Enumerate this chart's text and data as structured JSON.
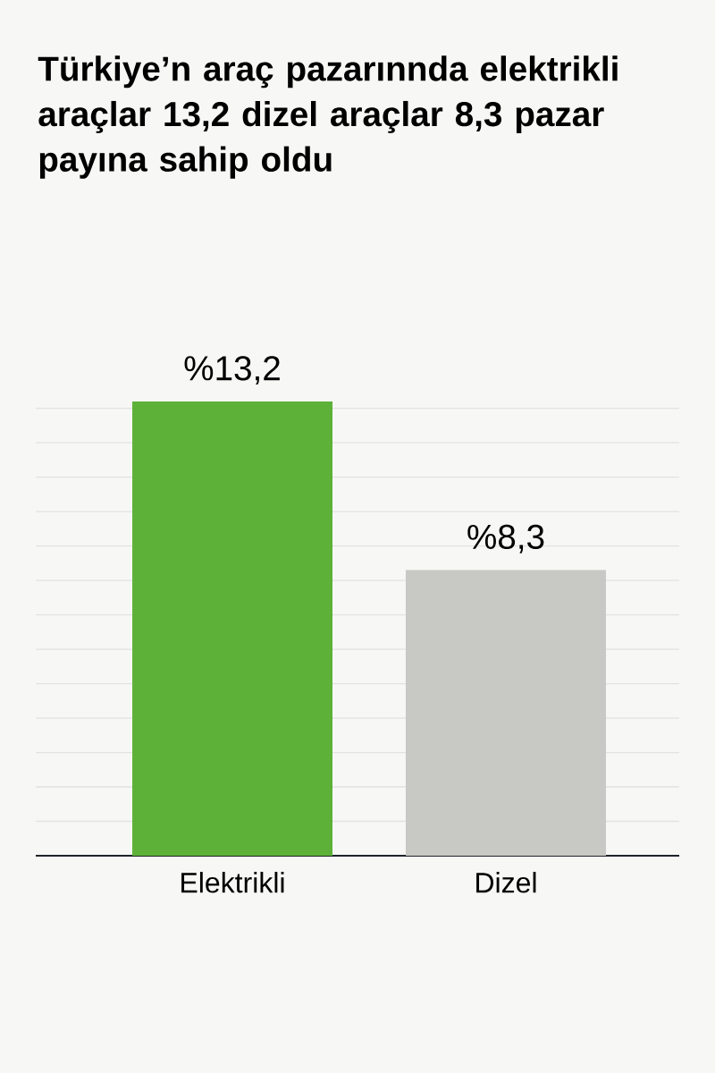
{
  "chart_data": {
    "type": "bar",
    "title": "Türkiye’n araç pazarınnda elektrikli araçlar 13,2 dizel araçlar 8,3 pazar payına sahip oldu",
    "categories": [
      "Elektrikli",
      "Dizel"
    ],
    "values": [
      13.2,
      8.3
    ],
    "colors": [
      "#5db138",
      "#c8c8c4"
    ],
    "value_labels": [
      "%13,2",
      "%8,3"
    ],
    "ylim": [
      0,
      13.2
    ],
    "grid": "y",
    "tick_labels": "x"
  }
}
